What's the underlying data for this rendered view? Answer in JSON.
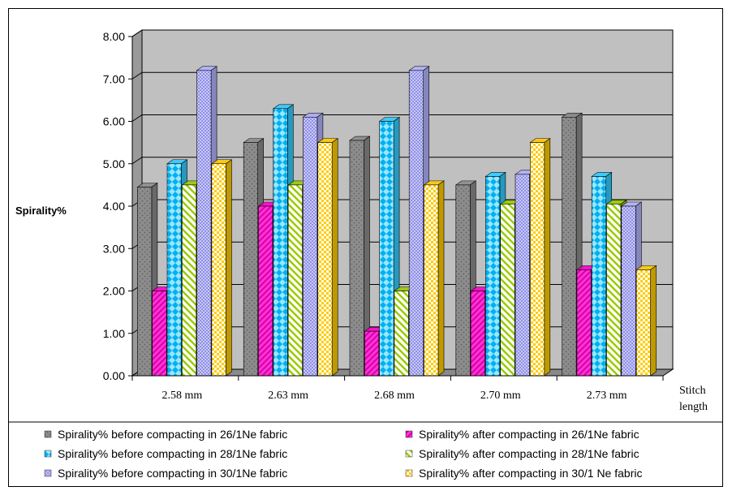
{
  "chart_data": {
    "type": "bar",
    "title": "",
    "ylabel": "Spirality%",
    "xlabel": "Stitch length",
    "ylim": [
      0,
      8
    ],
    "yticks": [
      "0.00",
      "1.00",
      "2.00",
      "3.00",
      "4.00",
      "5.00",
      "6.00",
      "7.00",
      "8.00"
    ],
    "categories": [
      "2.58 mm",
      "2.63 mm",
      "2.68 mm",
      "2.70 mm",
      "2.73 mm"
    ],
    "grid": true,
    "legend_position": "bottom",
    "series": [
      {
        "name": "Spirality% before compacting in 26/1Ne fabric",
        "color": "#8c8c8c",
        "values": [
          4.45,
          5.5,
          5.55,
          4.5,
          6.1
        ]
      },
      {
        "name": "Spirality% after compacting in 26/1Ne fabric",
        "color": "#ff00cc",
        "values": [
          2.0,
          4.0,
          1.05,
          2.0,
          2.5
        ]
      },
      {
        "name": "Spirality% before compacting in 28/1Ne fabric",
        "color": "#33ccff",
        "values": [
          5.0,
          6.3,
          6.0,
          4.7,
          4.7
        ]
      },
      {
        "name": "Spirality% after compacting in 28/1Ne fabric",
        "color": "#99cc00",
        "values": [
          4.5,
          4.5,
          2.0,
          4.05,
          4.05
        ]
      },
      {
        "name": "Spirality% before compacting in 30/1Ne fabric",
        "color": "#b3b3ff",
        "values": [
          7.2,
          6.1,
          7.2,
          4.75,
          4.0
        ]
      },
      {
        "name": "Spirality% after compacting in 30/1 Ne fabric",
        "color": "#ffcc00",
        "values": [
          5.0,
          5.5,
          4.5,
          5.5,
          2.5
        ]
      }
    ]
  }
}
